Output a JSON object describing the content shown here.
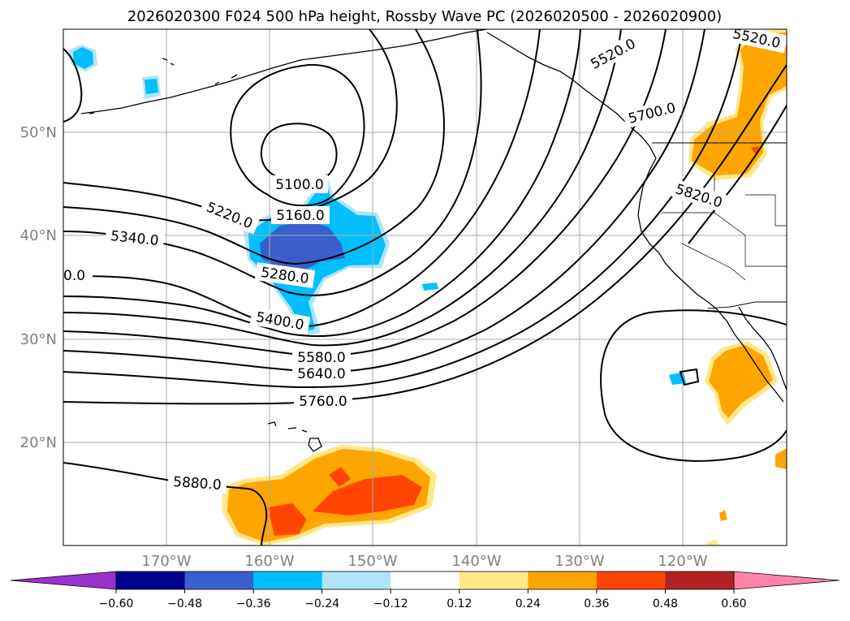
{
  "title": "2026020300 F024 500 hPa height, Rossby Wave PC (2026020500 - 2026020900)",
  "lat_labels": [
    "50°N",
    "40°N",
    "30°N",
    "20°N"
  ],
  "lon_labels": [
    "170°W",
    "160°W",
    "150°W",
    "140°W",
    "130°W",
    "120°W"
  ],
  "contour_labels": [
    "5520.0",
    "5520.0",
    "5700.0",
    "5820.0",
    "5100.0",
    "5160.0",
    "5220.0",
    "5340.0",
    "5280.0",
    "5400.0",
    "5580.0",
    "5640.0",
    "5760.0",
    "5880.0",
    "0.0"
  ],
  "colorbar": {
    "ticks": [
      "−0.60",
      "−0.48",
      "−0.36",
      "−0.24",
      "−0.12",
      "0.12",
      "0.24",
      "0.36",
      "0.48",
      "0.60"
    ],
    "colors": [
      "#9932cc",
      "#00008b",
      "#3a5fcd",
      "#00bfff",
      "#afe4fb",
      "#ffffff",
      "#ffe88a",
      "#ffa500",
      "#ff4500",
      "#b22222",
      "#ff85a8"
    ]
  },
  "palette": {
    "neg_light": "#afe4fb",
    "neg_mid": "#00bfff",
    "neg_strong": "#3a5fcd",
    "pos_light": "#ffe88a",
    "pos_mid": "#ffa500",
    "pos_strong": "#ff4500"
  }
}
